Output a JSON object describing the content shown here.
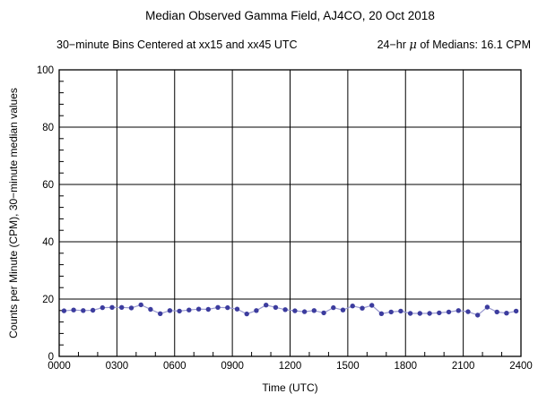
{
  "header": {
    "title": "Median Observed Gamma Field, AJ4CO, 20 Oct 2018",
    "subtitle_left": "30−minute Bins Centered at xx15 and xx45 UTC",
    "subtitle_right_prefix": "24−hr ",
    "subtitle_right_mu": "μ",
    "subtitle_right_suffix": " of Medians: 16.1 CPM"
  },
  "chart_data": {
    "type": "line",
    "title": "Median Observed Gamma Field, AJ4CO, 20 Oct 2018",
    "subtitle": "30−minute Bins Centered at xx15 and xx45 UTC    24−hr μ of Medians: 16.1 CPM",
    "xlabel": "Time (UTC)",
    "ylabel": "Counts per Minute (CPM), 30−minute median values",
    "xlim_hours": [
      0,
      24
    ],
    "ylim": [
      0,
      100
    ],
    "grid": true,
    "legend": "none",
    "x_major_ticks_hours": [
      0,
      3,
      6,
      9,
      12,
      15,
      18,
      21,
      24
    ],
    "x_tick_labels": [
      "0000",
      "0300",
      "0600",
      "0900",
      "1200",
      "1500",
      "1800",
      "2100",
      "2400"
    ],
    "x_minor_step_hours": 1,
    "y_major_ticks": [
      0,
      20,
      40,
      60,
      80,
      100
    ],
    "y_tick_labels": [
      "0",
      "20",
      "40",
      "60",
      "80",
      "100"
    ],
    "y_minor_step": 4,
    "mean_of_medians_cpm": 16.1,
    "series": [
      {
        "name": "30-minute median CPM",
        "marker": "filled-circle",
        "marker_color": "#3c3c9e",
        "line_color": "#9a9ad0",
        "x_hours": [
          0.25,
          0.75,
          1.25,
          1.75,
          2.25,
          2.75,
          3.25,
          3.75,
          4.25,
          4.75,
          5.25,
          5.75,
          6.25,
          6.75,
          7.25,
          7.75,
          8.25,
          8.75,
          9.25,
          9.75,
          10.25,
          10.75,
          11.25,
          11.75,
          12.25,
          12.75,
          13.25,
          13.75,
          14.25,
          14.75,
          15.25,
          15.75,
          16.25,
          16.75,
          17.25,
          17.75,
          18.25,
          18.75,
          19.25,
          19.75,
          20.25,
          20.75,
          21.25,
          21.75,
          22.25,
          22.75,
          23.25,
          23.75
        ],
        "x_labels": [
          "0015",
          "0045",
          "0115",
          "0145",
          "0215",
          "0245",
          "0315",
          "0345",
          "0415",
          "0445",
          "0515",
          "0545",
          "0615",
          "0645",
          "0715",
          "0745",
          "0815",
          "0845",
          "0915",
          "0945",
          "1015",
          "1045",
          "1115",
          "1145",
          "1215",
          "1245",
          "1315",
          "1345",
          "1415",
          "1445",
          "1515",
          "1545",
          "1615",
          "1645",
          "1715",
          "1745",
          "1815",
          "1845",
          "1915",
          "1945",
          "2015",
          "2045",
          "2115",
          "2145",
          "2215",
          "2245",
          "2315",
          "2345"
        ],
        "values": [
          15.9,
          16.2,
          16.0,
          16.1,
          17.0,
          17.1,
          17.1,
          16.9,
          18.0,
          16.4,
          14.9,
          16.0,
          15.8,
          16.2,
          16.5,
          16.4,
          17.1,
          17.0,
          16.5,
          14.8,
          16.0,
          17.9,
          17.1,
          16.3,
          15.9,
          15.6,
          16.0,
          15.2,
          17.0,
          16.2,
          17.6,
          16.8,
          17.8,
          14.9,
          15.5,
          15.8,
          15.0,
          15.0,
          15.0,
          15.2,
          15.5,
          16.0,
          15.6,
          14.4,
          17.2,
          15.5,
          15.1,
          15.8
        ]
      }
    ]
  },
  "colors": {
    "background": "#ffffff",
    "axes": "#000000",
    "text": "#000000",
    "marker": "#3c3c9e",
    "line": "#9a9ad0"
  }
}
